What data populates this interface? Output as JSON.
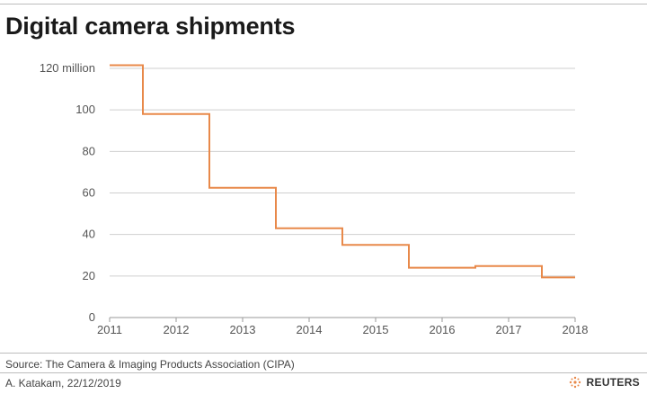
{
  "title": "Digital camera shipments",
  "source": "Source: The Camera & Imaging Products Association (CIPA)",
  "credit": "A. Katakam,  22/12/2019",
  "logo": {
    "text": "REUTERS",
    "icon": "reuters-logo-icon"
  },
  "colors": {
    "series": "#e8894a",
    "grid": "#cfcfcf",
    "text": "#555555"
  },
  "chart_data": {
    "type": "line",
    "step": true,
    "title": "Digital camera shipments",
    "xlabel": "",
    "ylabel": "",
    "x_ticks": [
      "2011",
      "2012",
      "2013",
      "2014",
      "2015",
      "2016",
      "2017",
      "2018"
    ],
    "y_ticks": [
      "0",
      "20",
      "40",
      "60",
      "80",
      "100",
      "120 million"
    ],
    "y_tick_values": [
      0,
      20,
      40,
      60,
      80,
      100,
      120
    ],
    "xlim": [
      2011,
      2018
    ],
    "ylim": [
      0,
      120
    ],
    "grid": true,
    "series": [
      {
        "name": "",
        "x": [
          2011,
          2011.5,
          2011.5,
          2012.5,
          2012.5,
          2013.5,
          2013.5,
          2014.5,
          2014.5,
          2015.5,
          2015.5,
          2016.5,
          2016.5,
          2017.5,
          2017.5,
          2018
        ],
        "y": [
          121.5,
          121.5,
          98,
          98,
          62.5,
          62.5,
          43,
          43,
          35,
          35,
          24,
          24,
          24.8,
          24.8,
          19.3,
          19.3
        ]
      }
    ]
  }
}
